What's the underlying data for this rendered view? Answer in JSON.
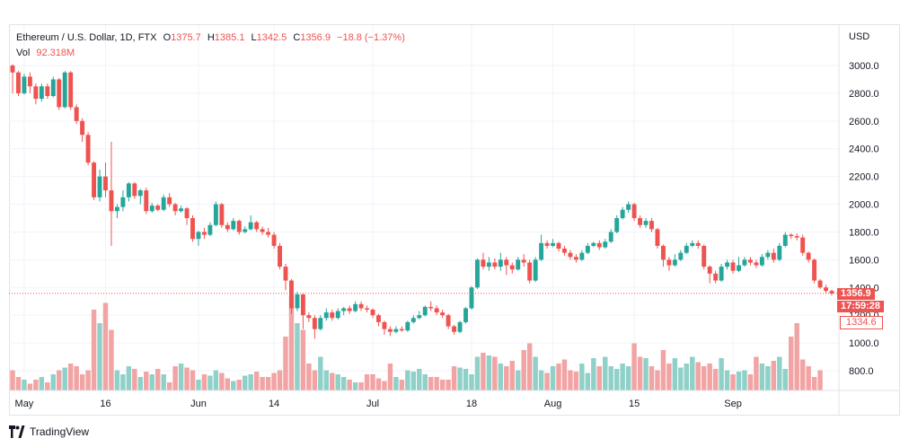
{
  "header": {
    "symbol": "Ethereum / U.S. Dollar, 1D, FTX",
    "o_label": "O",
    "o_value": "1375.7",
    "h_label": "H",
    "h_value": "1385.1",
    "l_label": "L",
    "l_value": "1342.5",
    "c_label": "C",
    "c_value": "1356.9",
    "change": "−18.8 (−1.37%)",
    "vol_label": "Vol",
    "vol_value": "92.318M"
  },
  "price_scale": {
    "currency": "USD",
    "current_price": "1356.9",
    "countdown": "17:59:28",
    "boxed_value": "1334.6"
  },
  "branding": {
    "name": "TradingView"
  },
  "colors": {
    "up": "#26a69a",
    "down": "#ef5350",
    "up_vol": "#8fd0c8",
    "down_vol": "#f2a3a3",
    "grid": "#f0f3fa",
    "text": "#131722"
  },
  "chart_data": {
    "type": "candlestick",
    "y_axis": {
      "min": 700,
      "max": 3100,
      "ticks": [
        "3000.0",
        "2800.0",
        "2600.0",
        "2400.0",
        "2200.0",
        "2000.0",
        "1800.0",
        "1600.0",
        "1400.0",
        "1200.0",
        "1000.0",
        "800.0"
      ]
    },
    "x_axis": {
      "tick_labels": [
        {
          "label": "May",
          "day": 2
        },
        {
          "label": "16",
          "day": 16
        },
        {
          "label": "Jun",
          "day": 32
        },
        {
          "label": "14",
          "day": 45
        },
        {
          "label": "Jul",
          "day": 62
        },
        {
          "label": "18",
          "day": 79
        },
        {
          "label": "Aug",
          "day": 93
        },
        {
          "label": "15",
          "day": 107
        },
        {
          "label": "Sep",
          "day": 124
        }
      ]
    },
    "last_price_line": 1356.9,
    "candles": [
      [
        3000,
        2950,
        3010,
        2800
      ],
      [
        2950,
        2800,
        2960,
        2780
      ],
      [
        2800,
        2920,
        2940,
        2790
      ],
      [
        2920,
        2850,
        2950,
        2800
      ],
      [
        2850,
        2760,
        2870,
        2720
      ],
      [
        2760,
        2850,
        2870,
        2740
      ],
      [
        2850,
        2780,
        2870,
        2760
      ],
      [
        2780,
        2900,
        2920,
        2770
      ],
      [
        2900,
        2700,
        2910,
        2680
      ],
      [
        2700,
        2950,
        2960,
        2690
      ],
      [
        2950,
        2700,
        2960,
        2680
      ],
      [
        2700,
        2600,
        2720,
        2580
      ],
      [
        2600,
        2500,
        2620,
        2450
      ],
      [
        2500,
        2300,
        2520,
        2280
      ],
      [
        2300,
        2050,
        2310,
        2030
      ],
      [
        2050,
        2200,
        2250,
        2020
      ],
      [
        2200,
        2100,
        2300,
        2050
      ],
      [
        2100,
        1950,
        2450,
        1700
      ],
      [
        1950,
        1980,
        2000,
        1900
      ],
      [
        1980,
        2050,
        2100,
        1950
      ],
      [
        2050,
        2150,
        2160,
        2020
      ],
      [
        2150,
        2060,
        2160,
        2040
      ],
      [
        2060,
        2100,
        2110,
        2000
      ],
      [
        2100,
        1950,
        2120,
        1930
      ],
      [
        1950,
        1990,
        2010,
        1940
      ],
      [
        1990,
        1960,
        2000,
        1950
      ],
      [
        1960,
        2050,
        2070,
        1950
      ],
      [
        2050,
        2000,
        2080,
        1980
      ],
      [
        2000,
        1950,
        2010,
        1920
      ],
      [
        1950,
        1970,
        1990,
        1940
      ],
      [
        1970,
        1900,
        1980,
        1850
      ],
      [
        1900,
        1750,
        1920,
        1730
      ],
      [
        1750,
        1800,
        1810,
        1700
      ],
      [
        1800,
        1780,
        1830,
        1750
      ],
      [
        1780,
        1850,
        1870,
        1770
      ],
      [
        1850,
        2000,
        2020,
        1840
      ],
      [
        2000,
        1850,
        2010,
        1830
      ],
      [
        1850,
        1820,
        1870,
        1800
      ],
      [
        1820,
        1880,
        1900,
        1810
      ],
      [
        1880,
        1800,
        1890,
        1780
      ],
      [
        1800,
        1820,
        1840,
        1790
      ],
      [
        1820,
        1870,
        1920,
        1810
      ],
      [
        1870,
        1820,
        1880,
        1800
      ],
      [
        1820,
        1800,
        1840,
        1780
      ],
      [
        1800,
        1780,
        1830,
        1760
      ],
      [
        1780,
        1700,
        1800,
        1680
      ],
      [
        1700,
        1550,
        1720,
        1530
      ],
      [
        1550,
        1450,
        1570,
        1380
      ],
      [
        1450,
        1250,
        1460,
        1210
      ],
      [
        1250,
        1350,
        1370,
        1230
      ],
      [
        1350,
        1200,
        1360,
        1100
      ],
      [
        1200,
        1180,
        1220,
        1150
      ],
      [
        1180,
        1100,
        1200,
        1030
      ],
      [
        1100,
        1180,
        1200,
        1090
      ],
      [
        1180,
        1220,
        1250,
        1160
      ],
      [
        1220,
        1180,
        1240,
        1160
      ],
      [
        1180,
        1230,
        1250,
        1170
      ],
      [
        1230,
        1250,
        1260,
        1200
      ],
      [
        1250,
        1230,
        1270,
        1210
      ],
      [
        1230,
        1280,
        1300,
        1220
      ],
      [
        1280,
        1250,
        1300,
        1230
      ],
      [
        1250,
        1240,
        1270,
        1220
      ],
      [
        1240,
        1200,
        1250,
        1180
      ],
      [
        1200,
        1150,
        1210,
        1120
      ],
      [
        1150,
        1100,
        1160,
        1060
      ],
      [
        1100,
        1080,
        1120,
        1050
      ],
      [
        1080,
        1100,
        1120,
        1070
      ],
      [
        1100,
        1090,
        1120,
        1080
      ],
      [
        1090,
        1150,
        1160,
        1080
      ],
      [
        1150,
        1180,
        1200,
        1140
      ],
      [
        1180,
        1200,
        1230,
        1170
      ],
      [
        1200,
        1260,
        1270,
        1190
      ],
      [
        1260,
        1250,
        1300,
        1230
      ],
      [
        1250,
        1220,
        1270,
        1200
      ],
      [
        1220,
        1200,
        1240,
        1180
      ],
      [
        1200,
        1120,
        1210,
        1100
      ],
      [
        1120,
        1080,
        1130,
        1060
      ],
      [
        1080,
        1150,
        1160,
        1070
      ],
      [
        1150,
        1250,
        1260,
        1140
      ],
      [
        1250,
        1400,
        1410,
        1240
      ],
      [
        1400,
        1600,
        1610,
        1390
      ],
      [
        1600,
        1550,
        1650,
        1530
      ],
      [
        1550,
        1580,
        1620,
        1520
      ],
      [
        1580,
        1550,
        1610,
        1530
      ],
      [
        1550,
        1600,
        1650,
        1520
      ],
      [
        1600,
        1560,
        1620,
        1490
      ],
      [
        1560,
        1530,
        1580,
        1500
      ],
      [
        1530,
        1600,
        1620,
        1520
      ],
      [
        1600,
        1580,
        1640,
        1550
      ],
      [
        1580,
        1450,
        1600,
        1430
      ],
      [
        1450,
        1600,
        1620,
        1440
      ],
      [
        1600,
        1720,
        1780,
        1590
      ],
      [
        1720,
        1700,
        1740,
        1680
      ],
      [
        1700,
        1720,
        1750,
        1690
      ],
      [
        1720,
        1680,
        1730,
        1660
      ],
      [
        1680,
        1650,
        1700,
        1630
      ],
      [
        1650,
        1620,
        1670,
        1600
      ],
      [
        1620,
        1600,
        1640,
        1580
      ],
      [
        1600,
        1650,
        1670,
        1590
      ],
      [
        1650,
        1700,
        1720,
        1640
      ],
      [
        1700,
        1720,
        1730,
        1690
      ],
      [
        1720,
        1690,
        1740,
        1670
      ],
      [
        1690,
        1730,
        1750,
        1680
      ],
      [
        1730,
        1800,
        1820,
        1720
      ],
      [
        1800,
        1900,
        1920,
        1790
      ],
      [
        1900,
        1960,
        1980,
        1890
      ],
      [
        1960,
        2000,
        2020,
        1940
      ],
      [
        2000,
        1900,
        2010,
        1880
      ],
      [
        1900,
        1850,
        1920,
        1830
      ],
      [
        1850,
        1880,
        1900,
        1830
      ],
      [
        1880,
        1820,
        1900,
        1800
      ],
      [
        1820,
        1700,
        1830,
        1680
      ],
      [
        1700,
        1600,
        1710,
        1550
      ],
      [
        1600,
        1560,
        1620,
        1520
      ],
      [
        1560,
        1600,
        1640,
        1550
      ],
      [
        1600,
        1650,
        1670,
        1590
      ],
      [
        1650,
        1700,
        1720,
        1640
      ],
      [
        1700,
        1720,
        1740,
        1690
      ],
      [
        1720,
        1700,
        1740,
        1680
      ],
      [
        1700,
        1550,
        1710,
        1530
      ],
      [
        1550,
        1500,
        1560,
        1430
      ],
      [
        1500,
        1450,
        1520,
        1430
      ],
      [
        1450,
        1550,
        1570,
        1440
      ],
      [
        1550,
        1580,
        1600,
        1530
      ],
      [
        1580,
        1520,
        1600,
        1500
      ],
      [
        1520,
        1560,
        1620,
        1510
      ],
      [
        1560,
        1600,
        1620,
        1550
      ],
      [
        1600,
        1580,
        1620,
        1560
      ],
      [
        1580,
        1560,
        1600,
        1540
      ],
      [
        1560,
        1620,
        1640,
        1550
      ],
      [
        1620,
        1650,
        1670,
        1600
      ],
      [
        1650,
        1600,
        1680,
        1580
      ],
      [
        1600,
        1700,
        1720,
        1590
      ],
      [
        1700,
        1780,
        1800,
        1690
      ],
      [
        1780,
        1770,
        1790,
        1750
      ],
      [
        1770,
        1760,
        1790,
        1740
      ],
      [
        1760,
        1650,
        1780,
        1630
      ],
      [
        1650,
        1600,
        1660,
        1580
      ],
      [
        1600,
        1450,
        1610,
        1430
      ],
      [
        1450,
        1400,
        1460,
        1390
      ],
      [
        1400,
        1375,
        1420,
        1360
      ],
      [
        1375,
        1356.9,
        1385,
        1342
      ]
    ],
    "volumes": [
      850,
      800,
      780,
      750,
      780,
      800,
      760,
      820,
      850,
      870,
      900,
      880,
      820,
      850,
      1300,
      1200,
      1350,
      1150,
      850,
      820,
      880,
      860,
      800,
      840,
      820,
      860,
      820,
      760,
      880,
      900,
      870,
      850,
      780,
      820,
      810,
      850,
      830,
      790,
      770,
      780,
      810,
      820,
      840,
      800,
      800,
      830,
      850,
      1100,
      1400,
      1200,
      1150,
      900,
      850,
      950,
      850,
      830,
      820,
      800,
      780,
      760,
      760,
      820,
      820,
      790,
      770,
      900,
      800,
      780,
      850,
      840,
      860,
      820,
      800,
      800,
      780,
      780,
      880,
      870,
      860,
      820,
      950,
      980,
      960,
      950,
      900,
      880,
      920,
      850,
      1000,
      1050,
      950,
      850,
      830,
      880,
      900,
      930,
      850,
      840,
      900,
      830,
      940,
      880,
      950,
      880,
      860,
      900,
      880,
      1050,
      950,
      940,
      880,
      850,
      1000,
      900,
      940,
      870,
      900,
      950,
      910,
      880,
      900,
      860,
      940,
      850,
      820,
      840,
      850,
      820,
      950,
      900,
      880,
      920,
      950,
      860,
      1100,
      1200,
      930,
      880,
      800,
      850
    ]
  }
}
